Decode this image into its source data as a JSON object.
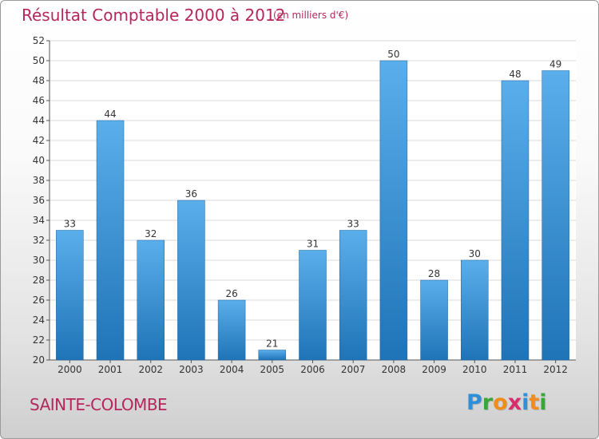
{
  "header": {
    "title": "Résultat Comptable 2000 à 2012",
    "subtitle": "(en milliers d'€)"
  },
  "footer": {
    "commune": "SAINTE-COLOMBE",
    "brand_letters": [
      {
        "ch": "P",
        "color": "#2f8fd8"
      },
      {
        "ch": "r",
        "color": "#3aa63a"
      },
      {
        "ch": "o",
        "color": "#f08c1a"
      },
      {
        "ch": "x",
        "color": "#d62e6e"
      },
      {
        "ch": "i",
        "color": "#2f8fd8"
      },
      {
        "ch": "t",
        "color": "#f08c1a"
      },
      {
        "ch": "i",
        "color": "#3aa63a"
      }
    ]
  },
  "colors": {
    "bar_light": "#5aaeea",
    "bar_dark": "#1f74b8",
    "title": "#b5265b",
    "grid": "#d9d9d9"
  },
  "chart_data": {
    "type": "bar",
    "title": "Résultat Comptable 2000 à 2012",
    "xlabel": "",
    "ylabel": "(en milliers d'€)",
    "categories": [
      "2000",
      "2001",
      "2002",
      "2003",
      "2004",
      "2005",
      "2006",
      "2007",
      "2008",
      "2009",
      "2010",
      "2011",
      "2012"
    ],
    "values": [
      33,
      44,
      32,
      36,
      26,
      21,
      31,
      33,
      50,
      28,
      30,
      48,
      49
    ],
    "ylim": [
      20,
      52
    ],
    "yticks": [
      20,
      22,
      24,
      26,
      28,
      30,
      32,
      34,
      36,
      38,
      40,
      42,
      44,
      46,
      48,
      50,
      52
    ],
    "grid": true,
    "data_labels": true
  }
}
